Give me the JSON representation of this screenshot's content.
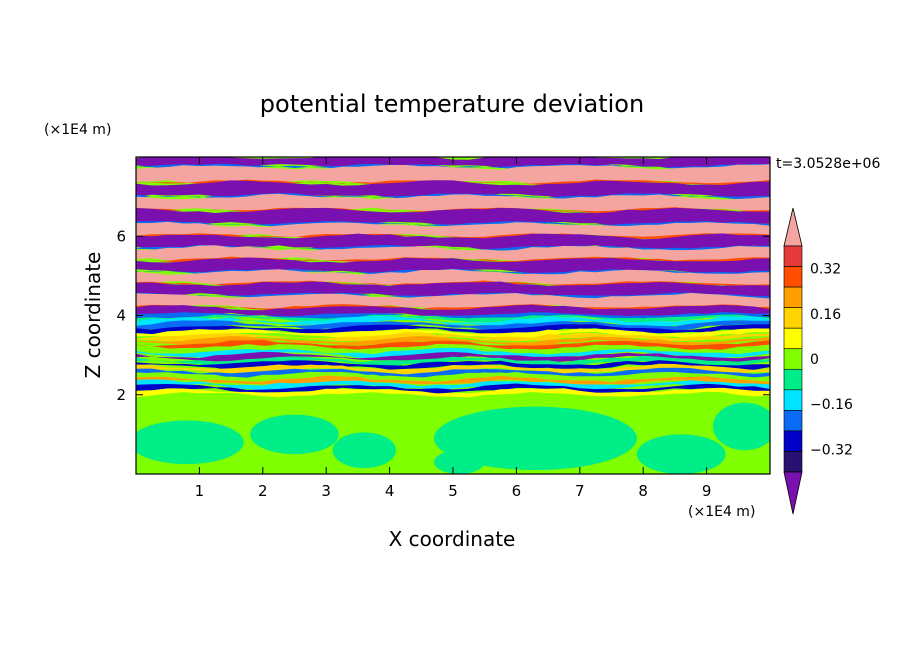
{
  "chart_data": {
    "type": "heatmap",
    "title": "potential temperature deviation",
    "xlabel": "X coordinate",
    "ylabel": "Z coordinate",
    "x_unit": "(×1E4 m)",
    "y_unit": "(×1E4 m)",
    "time_label": "t=3.0528e+06",
    "xlim": [
      0,
      10
    ],
    "ylim": [
      0,
      8
    ],
    "x_ticks": [
      "1",
      "2",
      "3",
      "4",
      "5",
      "6",
      "7",
      "8",
      "9"
    ],
    "y_ticks": [
      "2",
      "4",
      "6"
    ],
    "colorbar": {
      "levels": [
        -0.4,
        -0.32,
        -0.24,
        -0.16,
        -0.08,
        0,
        0.08,
        0.16,
        0.24,
        0.32,
        0.4
      ],
      "tick_labels": [
        "0.32",
        "0.16",
        "0",
        "-0.16",
        "-0.32"
      ],
      "colors": [
        "#e53a3a",
        "#ff4e00",
        "#ffa000",
        "#ffd400",
        "#ffff00",
        "#7fff00",
        "#00ee88",
        "#00e5ff",
        "#0a6cf5",
        "#0000c8",
        "#2a1070"
      ],
      "over_color": "#f4a5a0",
      "under_color": "#7a10b0"
    },
    "bands_top_down": [
      {
        "z_top": 8.0,
        "z_bottom": 7.75,
        "class": "under"
      },
      {
        "z_top": 7.75,
        "z_bottom": 7.35,
        "class": "over"
      },
      {
        "z_top": 7.35,
        "z_bottom": 7.0,
        "class": "under"
      },
      {
        "z_top": 7.0,
        "z_bottom": 6.65,
        "class": "over"
      },
      {
        "z_top": 6.65,
        "z_bottom": 6.3,
        "class": "under"
      },
      {
        "z_top": 6.3,
        "z_bottom": 6.0,
        "class": "over"
      },
      {
        "z_top": 6.0,
        "z_bottom": 5.7,
        "class": "under"
      },
      {
        "z_top": 5.7,
        "z_bottom": 5.4,
        "class": "over"
      },
      {
        "z_top": 5.4,
        "z_bottom": 5.1,
        "class": "under"
      },
      {
        "z_top": 5.1,
        "z_bottom": 4.8,
        "class": "over"
      },
      {
        "z_top": 4.8,
        "z_bottom": 4.5,
        "class": "under"
      },
      {
        "z_top": 4.5,
        "z_bottom": 4.2,
        "class": "over"
      },
      {
        "z_top": 4.2,
        "z_bottom": 4.0,
        "class": "under"
      },
      {
        "z_top": 4.0,
        "z_bottom": 2.0,
        "class": "mixed"
      },
      {
        "z_top": 2.0,
        "z_bottom": 0.0,
        "class": "near_zero"
      }
    ]
  }
}
